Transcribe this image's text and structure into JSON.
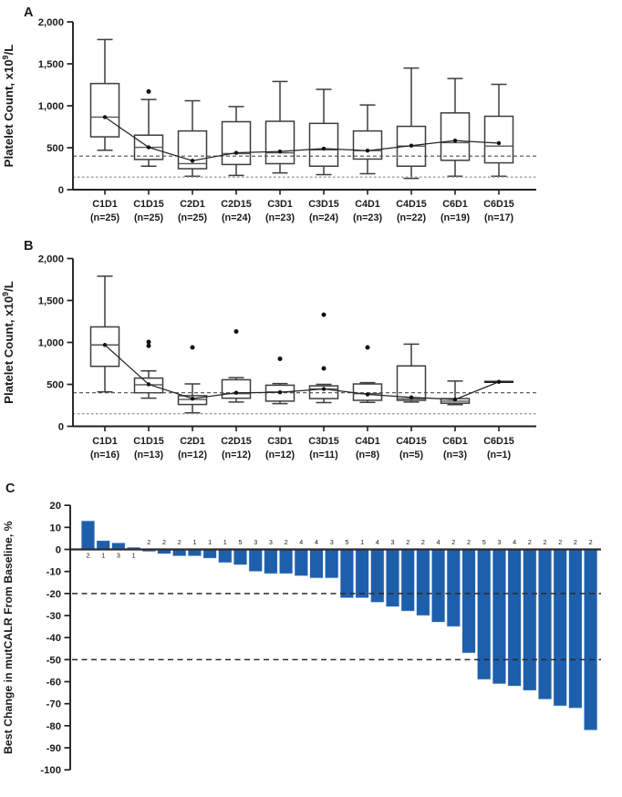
{
  "figure": {
    "description": "Three-panel clinical figure: platelet count box plots (A, B) and mutCALR waterfall plot (C)"
  },
  "colors": {
    "bar_blue": "#1E5FAC",
    "axis_black": "#231F20",
    "box_stroke": "#3D3D3D",
    "ref_dark": "#4D4D4D",
    "ref_gray": "#9B9B9B"
  },
  "chart_data": [
    {
      "type": "box",
      "panel": "A",
      "ylabel_pre": "Platelet Count, x10",
      "ylabel_sup": "9",
      "ylabel_post": "/L",
      "ylim": [
        0,
        2000
      ],
      "yticks": [
        0,
        500,
        1000,
        1500,
        2000
      ],
      "ytick_labels": [
        "0",
        "500",
        "1,000",
        "1,500",
        "2,000"
      ],
      "reference_lines": [
        400,
        150
      ],
      "categories": [
        "C1D1",
        "C1D15",
        "C2D1",
        "C2D15",
        "C3D1",
        "C3D15",
        "C4D1",
        "C4D15",
        "C6D1",
        "C6D15"
      ],
      "n_labels": [
        "(n=25)",
        "(n=25)",
        "(n=25)",
        "(n=24)",
        "(n=23)",
        "(n=24)",
        "(n=23)",
        "(n=22)",
        "(n=19)",
        "(n=17)"
      ],
      "boxes": [
        {
          "lo": 470,
          "q1": 630,
          "med": 865,
          "q3": 1265,
          "hi": 1790,
          "mean": 865,
          "outliers": []
        },
        {
          "lo": 280,
          "q1": 360,
          "med": 505,
          "q3": 650,
          "hi": 1075,
          "mean": 505,
          "outliers": [
            1170
          ]
        },
        {
          "lo": 160,
          "q1": 250,
          "med": 310,
          "q3": 700,
          "hi": 1060,
          "mean": 345,
          "outliers": []
        },
        {
          "lo": 170,
          "q1": 300,
          "med": 430,
          "q3": 810,
          "hi": 990,
          "mean": 440,
          "outliers": []
        },
        {
          "lo": 200,
          "q1": 310,
          "med": 440,
          "q3": 815,
          "hi": 1290,
          "mean": 455,
          "outliers": []
        },
        {
          "lo": 180,
          "q1": 280,
          "med": 475,
          "q3": 790,
          "hi": 1195,
          "mean": 490,
          "outliers": []
        },
        {
          "lo": 190,
          "q1": 365,
          "med": 465,
          "q3": 700,
          "hi": 1010,
          "mean": 465,
          "outliers": []
        },
        {
          "lo": 135,
          "q1": 280,
          "med": 520,
          "q3": 755,
          "hi": 1450,
          "mean": 525,
          "outliers": []
        },
        {
          "lo": 160,
          "q1": 350,
          "med": 560,
          "q3": 915,
          "hi": 1325,
          "mean": 585,
          "outliers": []
        },
        {
          "lo": 160,
          "q1": 320,
          "med": 520,
          "q3": 875,
          "hi": 1255,
          "mean": 555,
          "outliers": []
        }
      ]
    },
    {
      "type": "box",
      "panel": "B",
      "ylabel_pre": "Platelet Count, x10",
      "ylabel_sup": "9",
      "ylabel_post": "/L",
      "ylim": [
        0,
        2000
      ],
      "yticks": [
        0,
        500,
        1000,
        1500,
        2000
      ],
      "ytick_labels": [
        "0",
        "500",
        "1,000",
        "1,500",
        "2,000"
      ],
      "reference_lines": [
        400,
        150
      ],
      "categories": [
        "C1D1",
        "C1D15",
        "C2D1",
        "C2D15",
        "C3D1",
        "C3D15",
        "C4D1",
        "C4D15",
        "C6D1",
        "C6D15"
      ],
      "n_labels": [
        "(n=16)",
        "(n=13)",
        "(n=12)",
        "(n=12)",
        "(n=12)",
        "(n=11)",
        "(n=8)",
        "(n=5)",
        "(n=3)",
        "(n=1)"
      ],
      "boxes": [
        {
          "lo": 410,
          "q1": 715,
          "med": 970,
          "q3": 1185,
          "hi": 1790,
          "mean": 970,
          "outliers": []
        },
        {
          "lo": 335,
          "q1": 400,
          "med": 495,
          "q3": 575,
          "hi": 660,
          "mean": 500,
          "outliers": [
            1005,
            960
          ]
        },
        {
          "lo": 160,
          "q1": 260,
          "med": 320,
          "q3": 365,
          "hi": 505,
          "mean": 330,
          "outliers": [
            940
          ]
        },
        {
          "lo": 290,
          "q1": 335,
          "med": 390,
          "q3": 555,
          "hi": 580,
          "mean": 400,
          "outliers": [
            1130
          ]
        },
        {
          "lo": 270,
          "q1": 300,
          "med": 410,
          "q3": 490,
          "hi": 510,
          "mean": 405,
          "outliers": [
            805
          ]
        },
        {
          "lo": 282,
          "q1": 330,
          "med": 445,
          "q3": 482,
          "hi": 500,
          "mean": 445,
          "outliers": [
            1330,
            690
          ]
        },
        {
          "lo": 285,
          "q1": 310,
          "med": 390,
          "q3": 505,
          "hi": 520,
          "mean": 380,
          "outliers": [
            940
          ]
        },
        {
          "lo": 290,
          "q1": 310,
          "med": 330,
          "q3": 720,
          "hi": 980,
          "mean": 345,
          "outliers": []
        },
        {
          "lo": 258,
          "q1": 275,
          "med": 300,
          "q3": 330,
          "hi": 540,
          "mean": 320,
          "outliers": []
        },
        {
          "lo": 530,
          "q1": 530,
          "med": 530,
          "q3": 530,
          "hi": 530,
          "mean": 530,
          "single": true,
          "outliers": []
        }
      ]
    },
    {
      "type": "bar",
      "panel": "C",
      "ylabel": "Best Change in mutCALR From Baseline, %",
      "ylim": [
        -100,
        20
      ],
      "yticks": [
        20,
        10,
        0,
        -10,
        -20,
        -30,
        -40,
        -50,
        -60,
        -70,
        -80,
        -90,
        -100
      ],
      "ytick_labels": [
        "20",
        "10",
        "0",
        "-10",
        "-20",
        "-30",
        "-40",
        "-50",
        "-60",
        "-70",
        "-80",
        "-90",
        "-100"
      ],
      "reference_lines": [
        -20,
        -50
      ],
      "values": [
        13,
        4,
        3,
        1,
        -1,
        -2,
        -3,
        -3,
        -4,
        -6,
        -7,
        -10,
        -11,
        -11,
        -12,
        -13,
        -13,
        -22,
        -22,
        -24,
        -26,
        -28,
        -30,
        -33,
        -35,
        -47,
        -59,
        -61,
        -62,
        -64,
        -68,
        -71,
        -72,
        -82
      ],
      "bar_labels": [
        "2",
        "1",
        "3",
        "1",
        "2",
        "2",
        "2",
        "1",
        "1",
        "1",
        "5",
        "3",
        "3",
        "2",
        "4",
        "4",
        "3",
        "5",
        "1",
        "4",
        "3",
        "2",
        "2",
        "4",
        "2",
        "2",
        "5",
        "3",
        "4",
        "2",
        "2",
        "2",
        "2",
        "2"
      ],
      "bar_color": "#1E5FAC"
    }
  ]
}
